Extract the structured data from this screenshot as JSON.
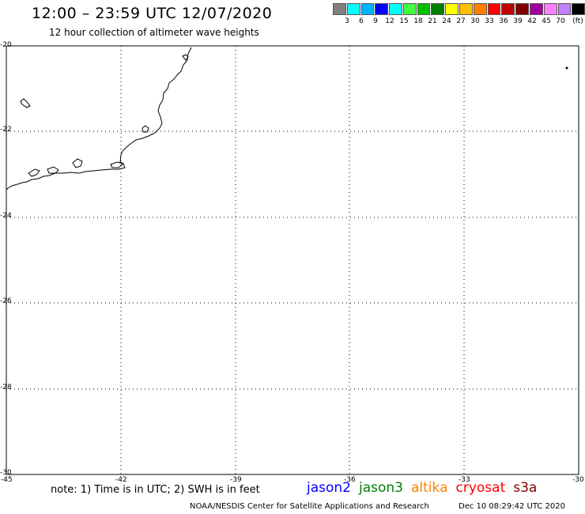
{
  "header": {
    "title": "12:00 – 23:59 UTC 12/07/2020",
    "subtitle": "12 hour collection of altimeter wave heights"
  },
  "legend": {
    "colors": [
      "#808080",
      "#00ffff",
      "#00b4ff",
      "#0000ff",
      "#00ffff",
      "#40ff40",
      "#00c000",
      "#008000",
      "#ffff00",
      "#ffc000",
      "#ff8000",
      "#ff0000",
      "#c00000",
      "#800000",
      "#a000a0",
      "#ff80ff",
      "#c080ff",
      "#000000"
    ],
    "labels": [
      "3",
      "6",
      "9",
      "12",
      "15",
      "18",
      "21",
      "24",
      "27",
      "30",
      "33",
      "36",
      "39",
      "42",
      "45",
      "70",
      "(ft)"
    ]
  },
  "map": {
    "x_ticks": [
      "-45",
      "-42",
      "-39",
      "-36",
      "-33",
      "-30"
    ],
    "y_ticks": [
      "-20",
      "-22",
      "-24",
      "-26",
      "-28",
      "-30"
    ],
    "lon_range": [
      -45,
      -30
    ],
    "lat_range": [
      -30,
      -20
    ]
  },
  "footer": {
    "note": "note: 1) Time is in UTC; 2) SWH is in feet",
    "satellites": [
      {
        "name": "jason2",
        "color": "#0000ff"
      },
      {
        "name": "jason3",
        "color": "#008000"
      },
      {
        "name": "altika",
        "color": "#ff8000"
      },
      {
        "name": "cryosat",
        "color": "#ff0000"
      },
      {
        "name": "s3a",
        "color": "#800000"
      }
    ],
    "credit": "NOAA/NESDIS Center for Satellite Applications and Research",
    "generated": "Dec 10 08:29:42 UTC 2020"
  }
}
